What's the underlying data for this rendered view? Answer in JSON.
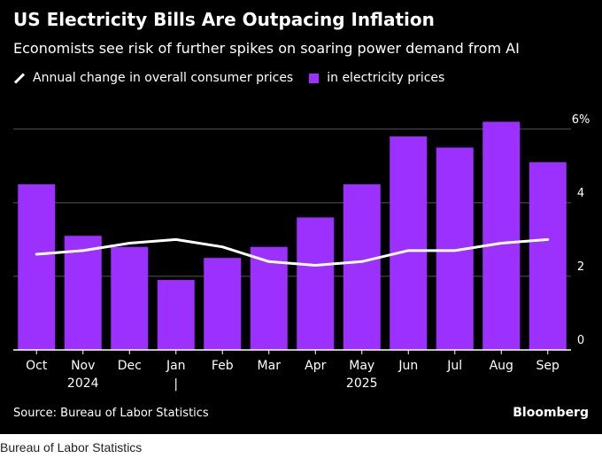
{
  "chart_data": {
    "type": "bar",
    "title": "US Electricity Bills Are Outpacing Inflation",
    "subtitle": "Economists see risk of further spikes on soaring power demand from AI",
    "categories": [
      "Oct",
      "Nov",
      "Dec",
      "Jan",
      "Feb",
      "Mar",
      "Apr",
      "May",
      "Jun",
      "Jul",
      "Aug",
      "Sep"
    ],
    "year_labels": [
      {
        "label": "2024",
        "category_index": 1
      },
      {
        "label": "2025",
        "category_index": 7
      }
    ],
    "year_divider_symbol": "|",
    "series": [
      {
        "name": "in electricity prices",
        "type": "bar",
        "color": "#9b30ff",
        "values": [
          4.5,
          3.1,
          2.8,
          1.9,
          2.5,
          2.8,
          3.6,
          4.5,
          5.8,
          5.5,
          6.2,
          5.1
        ]
      },
      {
        "name": "Annual change in overall consumer prices",
        "type": "line",
        "color": "#ffffff",
        "values": [
          2.6,
          2.7,
          2.9,
          3.0,
          2.8,
          2.4,
          2.3,
          2.4,
          2.7,
          2.7,
          2.9,
          3.0
        ]
      }
    ],
    "ylim": [
      0,
      6.5
    ],
    "yticks": [
      "0",
      "2",
      "4",
      "6%"
    ],
    "ytick_values": [
      0,
      2,
      4,
      6
    ],
    "grid": true,
    "legend_position": "top-left",
    "source": "Source: Bureau of Labor Statistics",
    "brand": "Bloomberg"
  },
  "caption": "Bureau of Labor Statistics"
}
